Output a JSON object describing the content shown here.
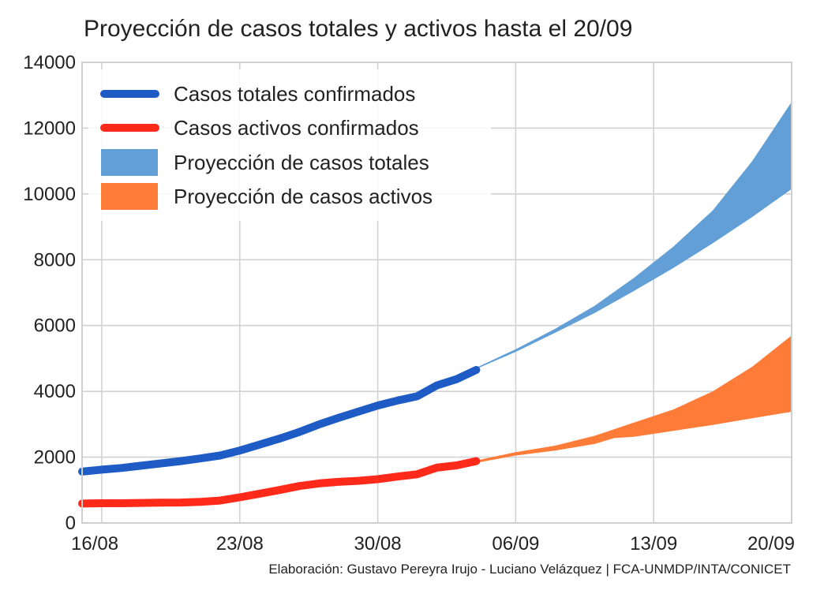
{
  "chart_data": {
    "type": "line",
    "title": "Proyección de casos totales y activos hasta el 20/09",
    "xlabel": "",
    "ylabel": "",
    "x_range": [
      "2020-08-15",
      "2020-09-20"
    ],
    "x_ticks": [
      {
        "label": "16/08",
        "date": "2020-08-16"
      },
      {
        "label": "23/08",
        "date": "2020-08-23"
      },
      {
        "label": "30/08",
        "date": "2020-08-30"
      },
      {
        "label": "06/09",
        "date": "2020-09-06"
      },
      {
        "label": "13/09",
        "date": "2020-09-13"
      },
      {
        "label": "20/09",
        "date": "2020-09-20"
      }
    ],
    "ylim": [
      0,
      14000
    ],
    "y_ticks": [
      0,
      2000,
      4000,
      6000,
      8000,
      10000,
      12000,
      14000
    ],
    "grid": true,
    "legend_position": "top-left",
    "series": [
      {
        "name": "Casos totales confirmados",
        "kind": "line",
        "color": "#1f5bc4",
        "points": [
          {
            "x": "2020-08-15",
            "y": 1560
          },
          {
            "x": "2020-08-16",
            "y": 1620
          },
          {
            "x": "2020-08-17",
            "y": 1670
          },
          {
            "x": "2020-08-18",
            "y": 1740
          },
          {
            "x": "2020-08-19",
            "y": 1810
          },
          {
            "x": "2020-08-20",
            "y": 1880
          },
          {
            "x": "2020-08-21",
            "y": 1960
          },
          {
            "x": "2020-08-22",
            "y": 2050
          },
          {
            "x": "2020-08-23",
            "y": 2200
          },
          {
            "x": "2020-08-24",
            "y": 2380
          },
          {
            "x": "2020-08-25",
            "y": 2560
          },
          {
            "x": "2020-08-26",
            "y": 2760
          },
          {
            "x": "2020-08-27",
            "y": 2990
          },
          {
            "x": "2020-08-28",
            "y": 3190
          },
          {
            "x": "2020-08-29",
            "y": 3380
          },
          {
            "x": "2020-08-30",
            "y": 3570
          },
          {
            "x": "2020-08-31",
            "y": 3720
          },
          {
            "x": "2020-09-01",
            "y": 3850
          },
          {
            "x": "2020-09-02",
            "y": 4180
          },
          {
            "x": "2020-09-03",
            "y": 4370
          },
          {
            "x": "2020-09-04",
            "y": 4650
          }
        ]
      },
      {
        "name": "Casos activos confirmados",
        "kind": "line",
        "color": "#ff2a1a",
        "points": [
          {
            "x": "2020-08-15",
            "y": 590
          },
          {
            "x": "2020-08-16",
            "y": 600
          },
          {
            "x": "2020-08-17",
            "y": 600
          },
          {
            "x": "2020-08-18",
            "y": 610
          },
          {
            "x": "2020-08-19",
            "y": 615
          },
          {
            "x": "2020-08-20",
            "y": 620
          },
          {
            "x": "2020-08-21",
            "y": 640
          },
          {
            "x": "2020-08-22",
            "y": 680
          },
          {
            "x": "2020-08-23",
            "y": 780
          },
          {
            "x": "2020-08-24",
            "y": 890
          },
          {
            "x": "2020-08-25",
            "y": 1000
          },
          {
            "x": "2020-08-26",
            "y": 1120
          },
          {
            "x": "2020-08-27",
            "y": 1200
          },
          {
            "x": "2020-08-28",
            "y": 1250
          },
          {
            "x": "2020-08-29",
            "y": 1280
          },
          {
            "x": "2020-08-30",
            "y": 1330
          },
          {
            "x": "2020-08-31",
            "y": 1410
          },
          {
            "x": "2020-09-01",
            "y": 1480
          },
          {
            "x": "2020-09-02",
            "y": 1680
          },
          {
            "x": "2020-09-03",
            "y": 1750
          },
          {
            "x": "2020-09-04",
            "y": 1880
          }
        ]
      },
      {
        "name": "Proyección de casos totales",
        "kind": "band",
        "color": "#629fd7",
        "points": [
          {
            "x": "2020-09-04",
            "low": 4680,
            "high": 4720
          },
          {
            "x": "2020-09-06",
            "low": 5200,
            "high": 5280
          },
          {
            "x": "2020-09-08",
            "low": 5780,
            "high": 5900
          },
          {
            "x": "2020-09-10",
            "low": 6380,
            "high": 6600
          },
          {
            "x": "2020-09-12",
            "low": 7050,
            "high": 7450
          },
          {
            "x": "2020-09-14",
            "low": 7750,
            "high": 8400
          },
          {
            "x": "2020-09-16",
            "low": 8500,
            "high": 9500
          },
          {
            "x": "2020-09-18",
            "low": 9300,
            "high": 11000
          },
          {
            "x": "2020-09-20",
            "low": 10150,
            "high": 12800
          }
        ]
      },
      {
        "name": "Proyección de casos activos",
        "kind": "band",
        "color": "#ff7b38",
        "points": [
          {
            "x": "2020-09-04",
            "low": 1830,
            "high": 1900
          },
          {
            "x": "2020-09-06",
            "low": 2050,
            "high": 2150
          },
          {
            "x": "2020-09-08",
            "low": 2200,
            "high": 2350
          },
          {
            "x": "2020-09-10",
            "low": 2400,
            "high": 2650
          },
          {
            "x": "2020-09-11",
            "low": 2580,
            "high": 2850
          },
          {
            "x": "2020-09-12",
            "low": 2620,
            "high": 3050
          },
          {
            "x": "2020-09-14",
            "low": 2800,
            "high": 3450
          },
          {
            "x": "2020-09-16",
            "low": 2980,
            "high": 4000
          },
          {
            "x": "2020-09-18",
            "low": 3180,
            "high": 4750
          },
          {
            "x": "2020-09-20",
            "low": 3380,
            "high": 5700
          }
        ]
      }
    ]
  },
  "credit": "Elaboración: Gustavo Pereyra Irujo - Luciano Velázquez | FCA-UNMDP/INTA/CONICET"
}
